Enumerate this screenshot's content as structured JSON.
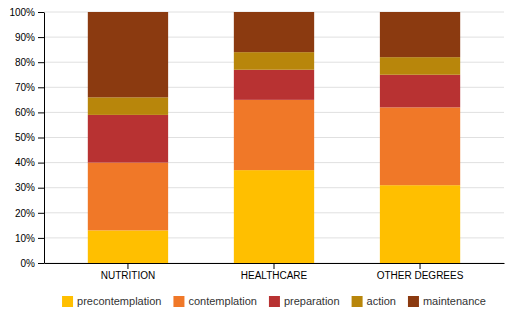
{
  "chart_data": {
    "type": "bar",
    "stacked": true,
    "categories": [
      "NUTRITION",
      "HEALTHCARE",
      "OTHER DEGREES"
    ],
    "series": [
      {
        "name": "precontemplation",
        "color": "#FFBF00",
        "values": [
          13,
          37,
          31
        ]
      },
      {
        "name": "contemplation",
        "color": "#F07828",
        "values": [
          27,
          28,
          31
        ]
      },
      {
        "name": "preparation",
        "color": "#B83232",
        "values": [
          19,
          12,
          13
        ]
      },
      {
        "name": "action",
        "color": "#B8860B",
        "values": [
          7,
          7,
          7
        ]
      },
      {
        "name": "maintenance",
        "color": "#8B3A10",
        "values": [
          34,
          16,
          18
        ]
      }
    ],
    "ylim": [
      0,
      100
    ],
    "yticks": [
      {
        "value": 0,
        "label": "0%"
      },
      {
        "value": 10,
        "label": "10%"
      },
      {
        "value": 20,
        "label": "20%"
      },
      {
        "value": 30,
        "label": "30%"
      },
      {
        "value": 40,
        "label": "40%"
      },
      {
        "value": 50,
        "label": "50%"
      },
      {
        "value": 60,
        "label": "60%"
      },
      {
        "value": 70,
        "label": "70%"
      },
      {
        "value": 80,
        "label": "80%"
      },
      {
        "value": 90,
        "label": "90%"
      },
      {
        "value": 100,
        "label": "100%"
      }
    ],
    "grid": true,
    "legend": "bottom"
  }
}
